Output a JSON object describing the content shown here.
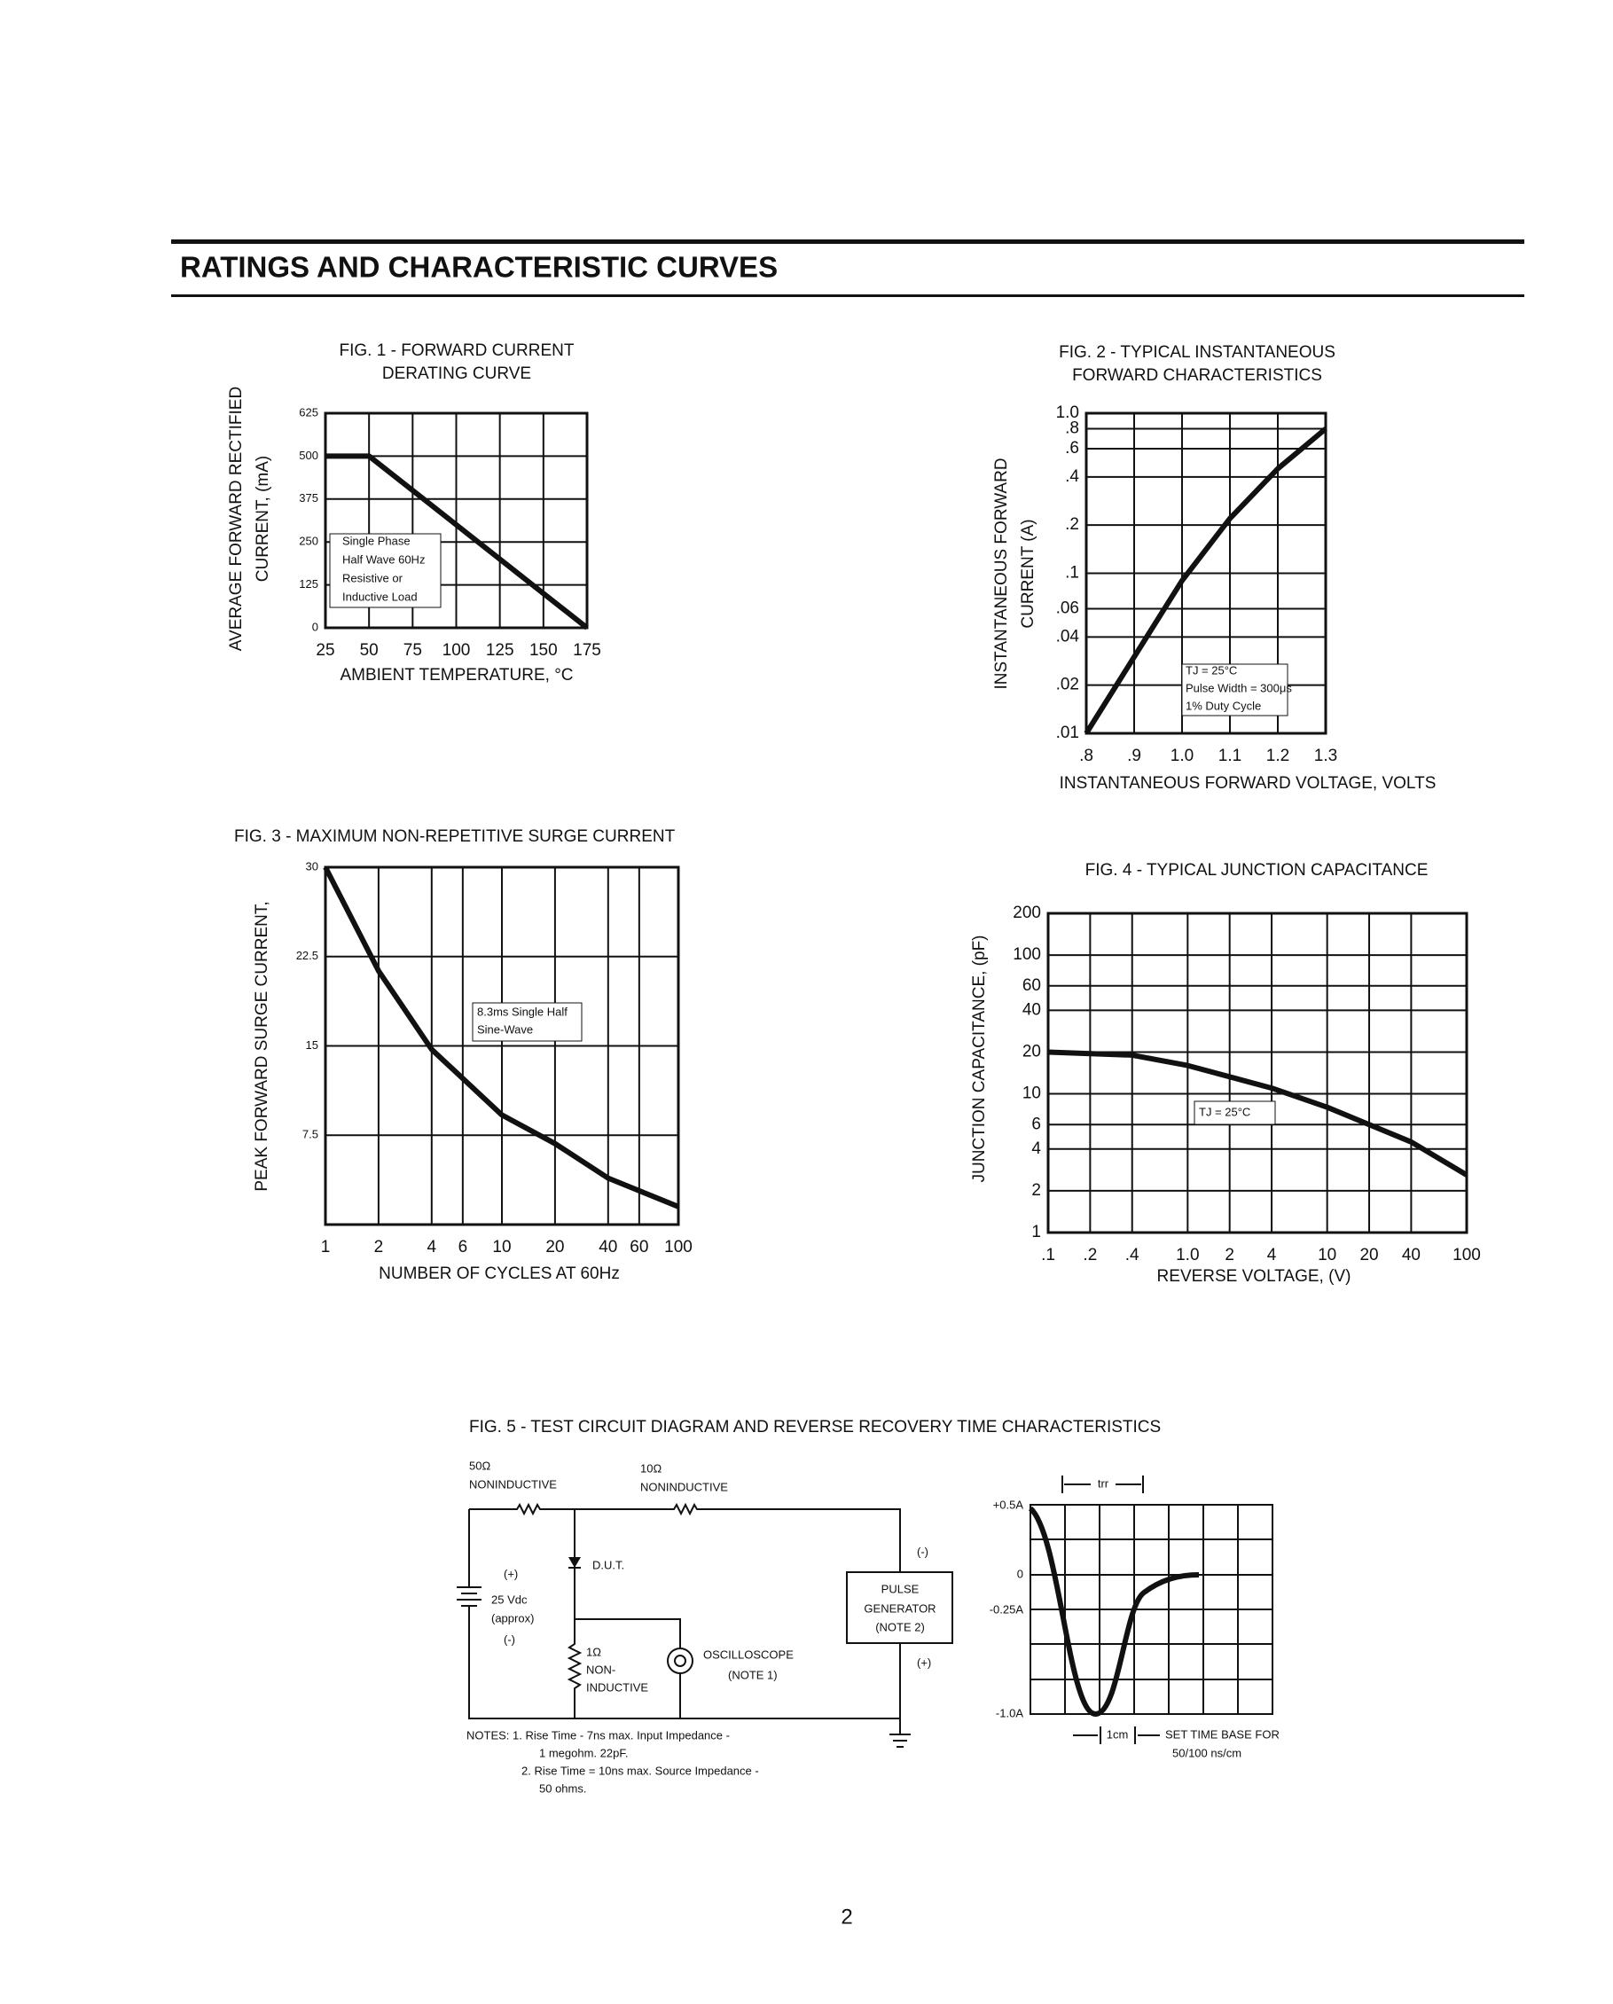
{
  "header": {
    "title": "RATINGS AND CHARACTERISTIC CURVES"
  },
  "chart_data": [
    {
      "type": "line",
      "title": [
        "FIG. 1 - FORWARD CURRENT",
        "DERATING CURVE"
      ],
      "y_label": [
        "AVERAGE FORWARD RECTIFIED",
        "CURRENT, (mA)"
      ],
      "x_label": "AMBIENT TEMPERATURE, °C",
      "x": [
        25,
        50,
        175
      ],
      "values": [
        500,
        500,
        0
      ],
      "color": "#111111",
      "xlim": [
        25,
        175
      ],
      "xticks": [
        25,
        50,
        75,
        100,
        125,
        150,
        175
      ],
      "ylim": [
        0,
        625
      ],
      "yticks": [
        0,
        125,
        250,
        375,
        500,
        625
      ],
      "grid": true,
      "xlog": false,
      "ylog": false,
      "annotation": [
        "Single Phase",
        "Half Wave 60Hz",
        "Resistive or",
        "Inductive Load"
      ]
    },
    {
      "type": "line",
      "title": [
        "FIG. 2 - TYPICAL INSTANTANEOUS",
        "FORWARD CHARACTERISTICS"
      ],
      "y_label": [
        "INSTANTANEOUS FORWARD",
        "CURRENT (A)"
      ],
      "x_label": "INSTANTANEOUS FORWARD VOLTAGE, VOLTS",
      "x": [
        0.8,
        0.9,
        1.0,
        1.1,
        1.2,
        1.3
      ],
      "values": [
        0.01,
        0.03,
        0.09,
        0.22,
        0.45,
        0.8
      ],
      "color": "#111111",
      "xlim": [
        0.8,
        1.3
      ],
      "xticks": [
        {
          "value": 0.8,
          "label": ".8"
        },
        {
          "value": 0.9,
          "label": ".9"
        },
        {
          "value": 1.0,
          "label": "1.0"
        },
        1.1,
        1.2,
        1.3
      ],
      "ylim": [
        0.01,
        1.0
      ],
      "yticks": [
        {
          "value": 1.0,
          "label": "1.0"
        },
        {
          "value": 0.8,
          "label": ".8"
        },
        {
          "value": 0.6,
          "label": ".6"
        },
        {
          "value": 0.4,
          "label": ".4"
        },
        {
          "value": 0.2,
          "label": ".2"
        },
        {
          "value": 0.1,
          "label": ".1"
        },
        {
          "value": 0.06,
          "label": ".06"
        },
        {
          "value": 0.04,
          "label": ".04"
        },
        {
          "value": 0.02,
          "label": ".02"
        },
        {
          "value": 0.01,
          "label": ".01"
        }
      ],
      "grid": true,
      "xlog": false,
      "ylog": true,
      "annotation": [
        "TJ = 25°C",
        "Pulse Width = 300μs",
        "1% Duty Cycle"
      ]
    },
    {
      "type": "line",
      "title": [
        "FIG. 3 - MAXIMUM NON-REPETITIVE SURGE CURRENT"
      ],
      "y_label": [
        "PEAK FORWARD SURGE CURRENT,"
      ],
      "x_label": "NUMBER OF CYCLES AT 60Hz",
      "x": [
        1,
        2,
        4,
        10,
        20,
        40,
        100
      ],
      "values": [
        30,
        21.3,
        14.7,
        9.2,
        6.8,
        3.9,
        1.5
      ],
      "color": "#111111",
      "xlim": [
        1,
        100
      ],
      "xticks": [
        1,
        2,
        4,
        6,
        10,
        20,
        40,
        60,
        100
      ],
      "ylim": [
        0,
        30
      ],
      "yticks": [
        7.5,
        15,
        22.5,
        30
      ],
      "grid": true,
      "xlog": true,
      "ylog": false,
      "annotation": [
        "8.3ms Single Half",
        "Sine-Wave"
      ]
    },
    {
      "type": "line",
      "title": [
        "FIG. 4 - TYPICAL JUNCTION CAPACITANCE"
      ],
      "y_label": [
        "JUNCTION CAPACITANCE, (pF)"
      ],
      "x_label": "REVERSE VOLTAGE, (V)",
      "x": [
        0.1,
        0.4,
        1,
        4,
        10,
        40,
        100
      ],
      "values": [
        20,
        19,
        16,
        11,
        8,
        4.5,
        2.6
      ],
      "color": "#111111",
      "xlim": [
        0.1,
        100
      ],
      "xticks": [
        {
          "value": 0.1,
          "label": ".1"
        },
        {
          "value": 0.2,
          "label": ".2"
        },
        {
          "value": 0.4,
          "label": ".4"
        },
        {
          "value": 1,
          "label": "1.0"
        },
        2,
        4,
        10,
        20,
        40,
        100
      ],
      "ylim": [
        1,
        200
      ],
      "yticks": [
        200,
        100,
        60,
        40,
        20,
        10,
        6,
        4,
        2,
        1
      ],
      "grid": true,
      "xlog": true,
      "ylog": true,
      "annotation": [
        "TJ = 25°C"
      ]
    }
  ],
  "fig5": {
    "title": "FIG. 5 - TEST CIRCUIT DIAGRAM AND REVERSE RECOVERY TIME CHARACTERISTICS",
    "r50": "50Ω",
    "r50_note": "NONINDUCTIVE",
    "r10": "10Ω",
    "r10_note": "NONINDUCTIVE",
    "dut": "D.U.T.",
    "bat_plus": "(+)",
    "bat_volt": "25 Vdc",
    "bat_approx": "(approx)",
    "bat_minus": "(-)",
    "r1": "1Ω",
    "r1_note1": "NON-",
    "r1_note2": "INDUCTIVE",
    "scope": "OSCILLOSCOPE",
    "scope_note": "(NOTE 1)",
    "gen1": "PULSE",
    "gen2": "GENERATOR",
    "gen3": "(NOTE 2)",
    "gen_minus": "(-)",
    "gen_plus": "(+)",
    "notes": [
      "NOTES: 1. Rise Time - 7ns max. Input Impedance -",
      "1 megohm. 22pF.",
      "2. Rise Time = 10ns max. Source Impedance -",
      "50 ohms."
    ],
    "trr": "trr",
    "wave_labels": [
      "+0.5A",
      "0",
      "-0.25A",
      "-1.0A"
    ],
    "cm": "1cm",
    "timebase": [
      "SET TIME BASE FOR",
      "50/100 ns/cm"
    ]
  },
  "page_number": "2"
}
